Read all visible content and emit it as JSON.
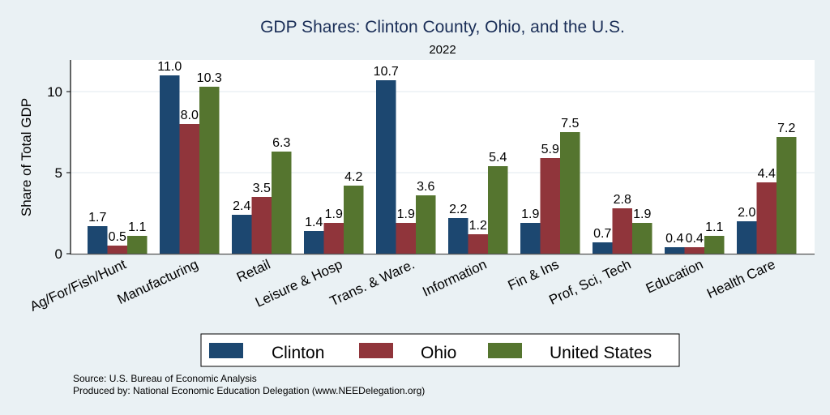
{
  "chart_data": {
    "type": "bar",
    "title": "GDP Shares: Clinton County, Ohio, and the U.S.",
    "subtitle": "2022",
    "xlabel": "",
    "ylabel": "Share of Total GDP",
    "ylim": [
      0,
      12
    ],
    "yticks": [
      0,
      5,
      10
    ],
    "grid": true,
    "legend_position": "bottom",
    "categories": [
      "Ag/For/Fish/Hunt",
      "Manufacturing",
      "Retail",
      "Leisure & Hosp",
      "Trans. & Ware.",
      "Information",
      "Fin & Ins",
      "Prof, Sci, Tech",
      "Education",
      "Health Care"
    ],
    "series": [
      {
        "name": "Clinton",
        "color": "#1c4770",
        "values": [
          1.7,
          11.0,
          2.4,
          1.4,
          10.7,
          2.2,
          1.9,
          0.7,
          0.4,
          2.0
        ],
        "labels": [
          "1.7",
          "11.0",
          "2.4",
          "1.4",
          "10.7",
          "2.2",
          "1.9",
          "0.7",
          "0.4",
          "2.0"
        ]
      },
      {
        "name": "Ohio",
        "color": "#90353b",
        "values": [
          0.5,
          8.0,
          3.5,
          1.9,
          1.9,
          1.2,
          5.9,
          2.8,
          0.4,
          4.4
        ],
        "labels": [
          "0.5",
          "8.0",
          "3.5",
          "1.9",
          "1.9",
          "1.2",
          "5.9",
          "2.8",
          "0.4",
          "4.4"
        ]
      },
      {
        "name": "United States",
        "color": "#55752f",
        "values": [
          1.1,
          10.3,
          6.3,
          4.2,
          3.6,
          5.4,
          7.5,
          1.9,
          1.1,
          7.2
        ],
        "labels": [
          "1.1",
          "10.3",
          "6.3",
          "4.2",
          "3.6",
          "5.4",
          "7.5",
          "1.9",
          "1.1",
          "7.2"
        ]
      }
    ],
    "notes": [
      "Source: U.S. Bureau of Economic Analysis",
      "Produced by: National Economic Education Delegation (www.NEEDelegation.org)"
    ]
  }
}
